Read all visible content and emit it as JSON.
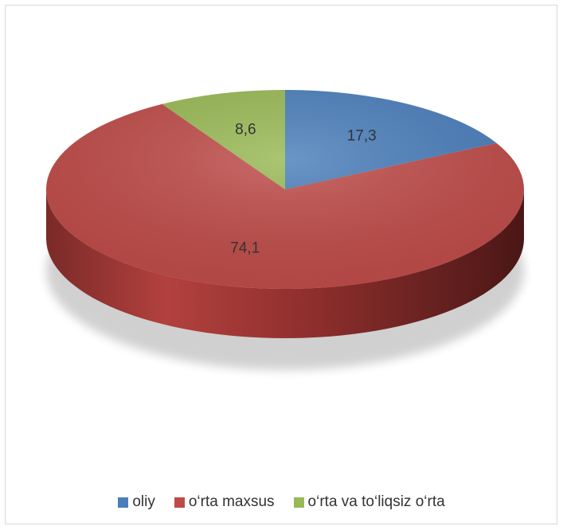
{
  "chart_data": {
    "type": "pie",
    "style": "3d",
    "categories": [
      "oliy",
      "o‘rta maxsus",
      "o‘rta va to‘liqsiz o‘rta"
    ],
    "values": [
      17.3,
      74.1,
      8.6
    ],
    "data_labels": [
      "17,3",
      "74,1",
      "8,6"
    ],
    "colors": [
      "#4a7ebb",
      "#be4b48",
      "#98b954"
    ],
    "legend_position": "bottom"
  }
}
